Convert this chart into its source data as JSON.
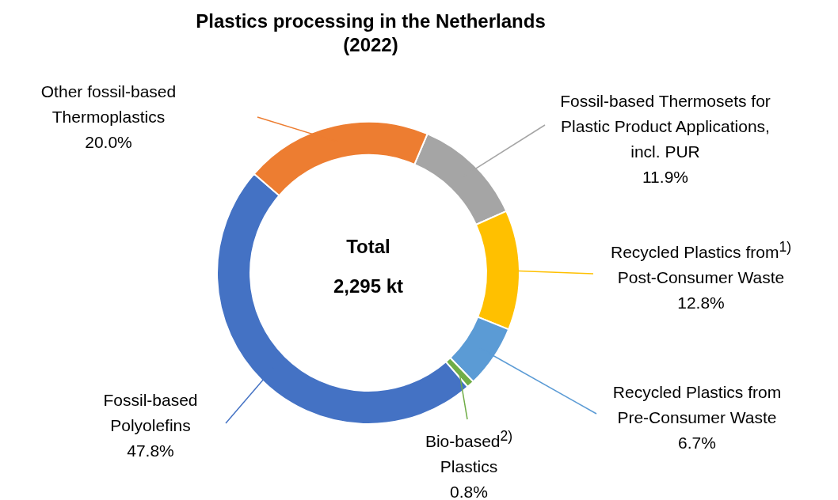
{
  "chart_data": {
    "type": "donut",
    "title": "Plastics processing in the Netherlands (2022)",
    "categories": [
      "Fossil-based Thermosets for Plastic Product Applications, incl. PUR",
      "Recycled Plastics from$^{1)}$ Post-Consumer Waste",
      "Recycled Plastics from Pre-Consumer Waste",
      "Bio-based$^{2)}$ Plastics",
      "Fossil-based Polyolefins",
      "Other fossil-based Thermoplastics"
    ],
    "values": [
      11.9,
      12.8,
      6.7,
      0.8,
      47.8,
      20.0
    ],
    "value_labels": [
      "11.9%",
      "12.8%",
      "6.7%",
      "0.8%",
      "47.8%",
      "20.0%"
    ],
    "colors": [
      "#a5a5a5",
      "#ffc000",
      "#5b9bd5",
      "#70ad47",
      "#4472c4",
      "#ed7d31"
    ],
    "annotations": [
      "Total",
      "2,295 kt"
    ],
    "legend": false
  }
}
